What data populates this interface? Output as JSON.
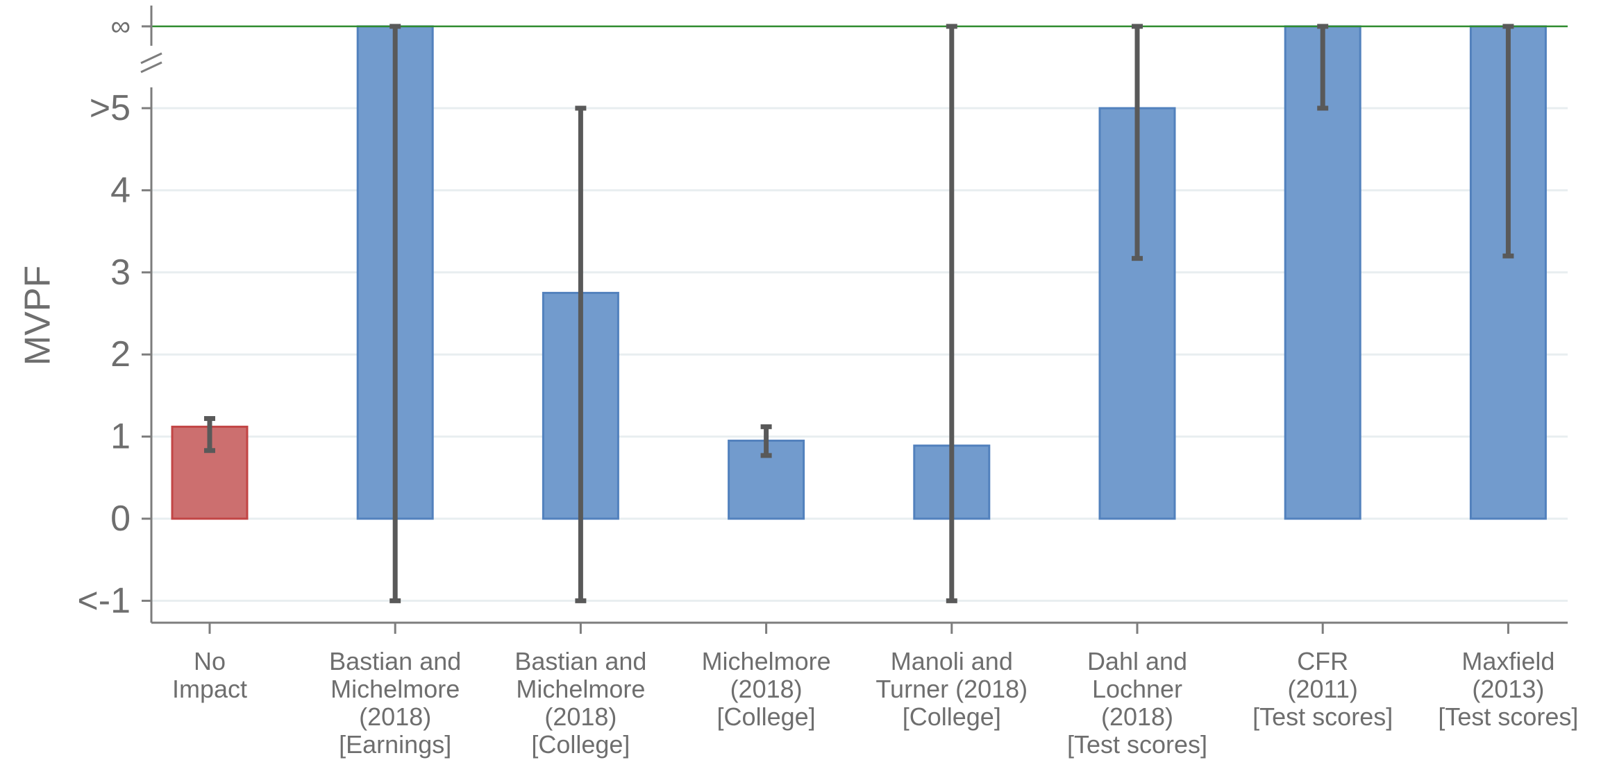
{
  "chart_data": {
    "type": "bar",
    "ylabel": "MVPF",
    "ylim": [
      -1,
      5
    ],
    "infinity_label": "∞",
    "y_ticks": [
      {
        "value": 5,
        "label": ">5"
      },
      {
        "value": 4,
        "label": "4"
      },
      {
        "value": 3,
        "label": "3"
      },
      {
        "value": 2,
        "label": "2"
      },
      {
        "value": 1,
        "label": "1"
      },
      {
        "value": 0,
        "label": "0"
      },
      {
        "value": -1,
        "label": "<-1"
      }
    ],
    "gridlines": true,
    "colors": {
      "baseline_bar": "#cc6f6f",
      "baseline_edge": "#c24545",
      "bar": "#729bcd",
      "bar_edge": "#5281bd",
      "error_bar": "#595959",
      "infinity_line": "#2e8b2e",
      "grid": "#e8eef0",
      "axis": "#7d7d7d"
    },
    "categories": [
      {
        "lines": [
          "No",
          "Impact"
        ],
        "value": 1.12,
        "infinite": false,
        "ci_low": 0.83,
        "ci_high": 1.22,
        "ci_high_infinite": false,
        "baseline": true
      },
      {
        "lines": [
          "Bastian and",
          "Michelmore",
          "(2018)",
          "[Earnings]"
        ],
        "value": null,
        "infinite": true,
        "ci_low": -1,
        "ci_high": null,
        "ci_high_infinite": true,
        "baseline": false
      },
      {
        "lines": [
          "Bastian and",
          "Michelmore",
          "(2018)",
          "[College]"
        ],
        "value": 2.75,
        "infinite": false,
        "ci_low": -1,
        "ci_high": 5,
        "ci_high_infinite": false,
        "baseline": false
      },
      {
        "lines": [
          "Michelmore",
          "(2018)",
          "[College]"
        ],
        "value": 0.95,
        "infinite": false,
        "ci_low": 0.77,
        "ci_high": 1.12,
        "ci_high_infinite": false,
        "baseline": false
      },
      {
        "lines": [
          "Manoli and",
          "Turner (2018)",
          "[College]"
        ],
        "value": 0.89,
        "infinite": false,
        "ci_low": -1,
        "ci_high": null,
        "ci_high_infinite": true,
        "baseline": false
      },
      {
        "lines": [
          "Dahl and",
          "Lochner",
          "(2018)",
          "[Test scores]"
        ],
        "value": 5,
        "infinite": false,
        "ci_low": 3.17,
        "ci_high": null,
        "ci_high_infinite": true,
        "baseline": false
      },
      {
        "lines": [
          "CFR",
          "(2011)",
          "[Test scores]"
        ],
        "value": null,
        "infinite": true,
        "ci_low": 5,
        "ci_high": null,
        "ci_high_infinite": true,
        "baseline": false
      },
      {
        "lines": [
          "Maxfield",
          "(2013)",
          "[Test scores]"
        ],
        "value": null,
        "infinite": true,
        "ci_low": 3.2,
        "ci_high": null,
        "ci_high_infinite": true,
        "baseline": false
      }
    ]
  }
}
